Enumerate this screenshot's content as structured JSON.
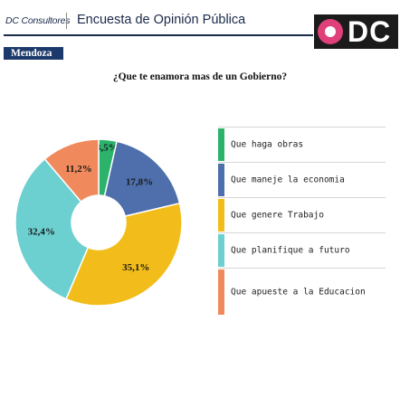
{
  "header": {
    "org": "DC Consultores",
    "survey_title": "Encuesta de Opinión Pública",
    "logo_text": "DC"
  },
  "region": "Mendoza",
  "colors": {
    "navy": "#1b3a6b",
    "logo_pink": "#e0407a"
  },
  "chart_data": {
    "type": "pie",
    "subtype": "donut",
    "title": "¿Que te enamora mas de un Gobierno?",
    "categories": [
      "Que haga obras",
      "Que maneje la economia",
      "Que genere Trabajo",
      "Que planifique a futuro",
      "Que apueste a la Educacion"
    ],
    "values": [
      3.5,
      17.8,
      35.1,
      32.4,
      11.2
    ],
    "labels": [
      "3,5%",
      "17,8%",
      "35,1%",
      "32,4%",
      "11,2%"
    ],
    "colors": [
      "#2bb26b",
      "#4e6fab",
      "#f2bd1a",
      "#6ccfd0",
      "#f08a5d"
    ],
    "legend_position": "right"
  }
}
